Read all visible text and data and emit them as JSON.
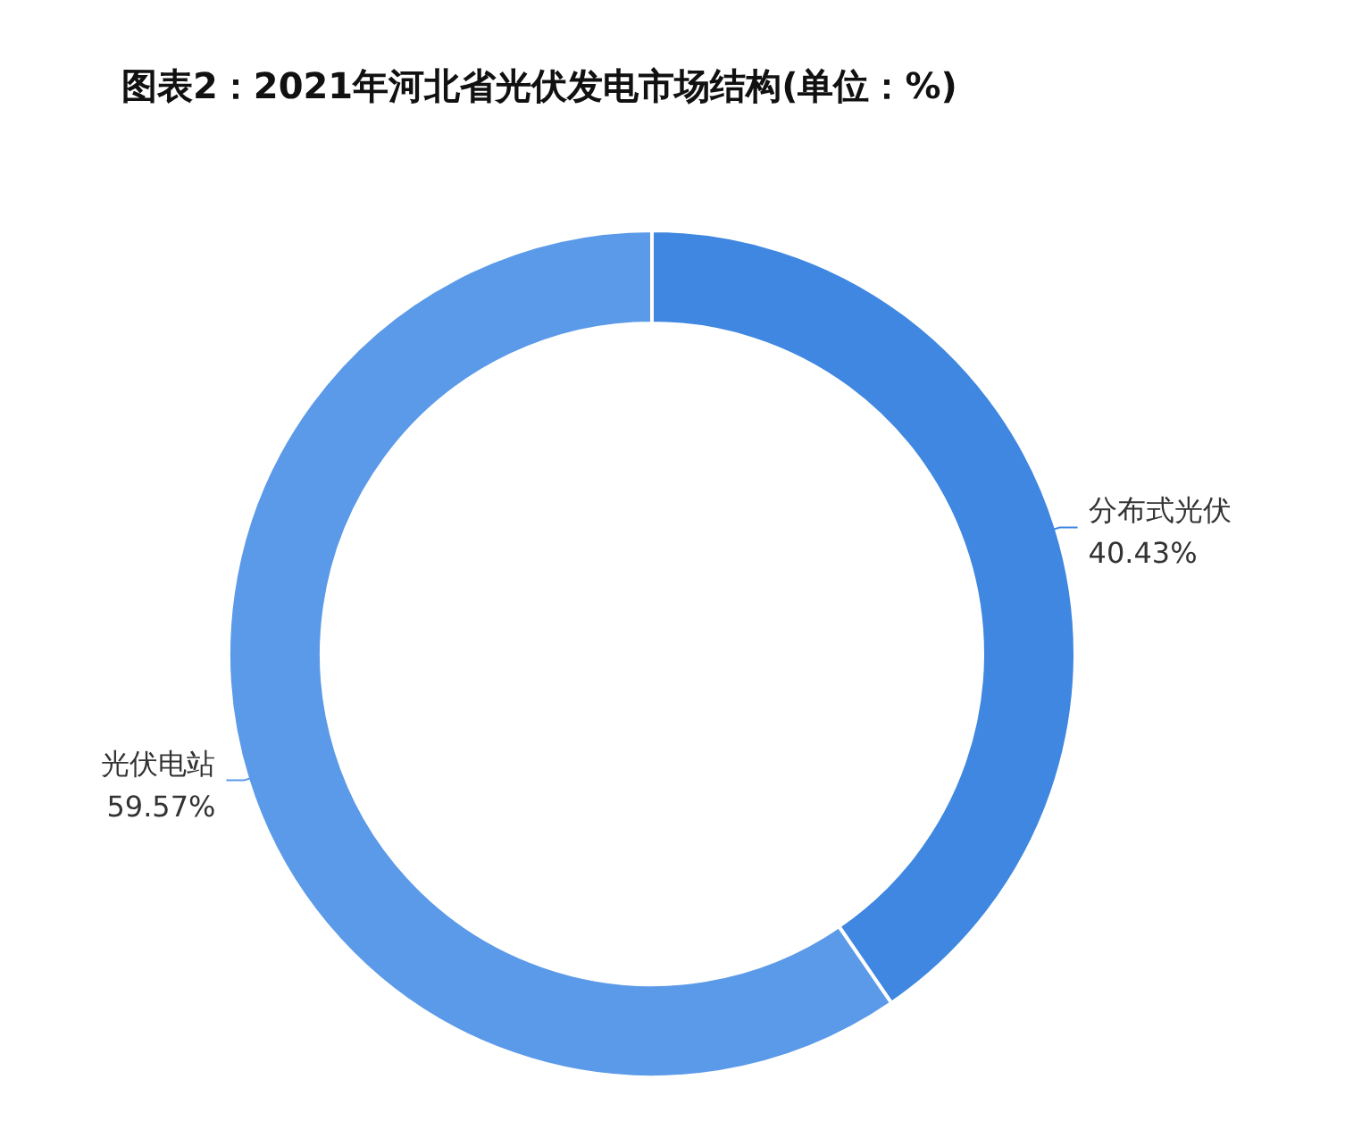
{
  "chart_data": {
    "type": "donut",
    "title": "图表2：2021年河北省光伏发电市场结构(单位：%)",
    "categories": [
      "分布式光伏",
      "光伏电站"
    ],
    "values": [
      40.43,
      59.57
    ],
    "colors": [
      "#3f87e0",
      "#5b9ae8"
    ],
    "value_labels": [
      "40.43%",
      "59.57%"
    ]
  }
}
